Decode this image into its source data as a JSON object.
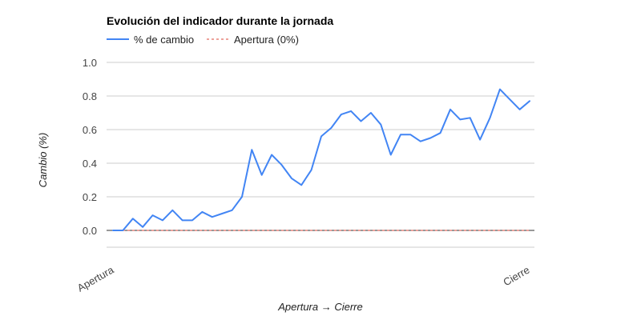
{
  "chart_data": {
    "type": "line",
    "title": "Evolución del indicador durante la jornada",
    "xlabel": "Apertura → Cierre",
    "ylabel": "Cambio (%)",
    "ylim": [
      0,
      1.0
    ],
    "yticks": [
      "0.0",
      "0.2",
      "0.4",
      "0.6",
      "0.8",
      "1.0"
    ],
    "xtick_labels": [
      "Apertura",
      "Cierre"
    ],
    "grid": true,
    "legend_position": "top-left",
    "colors": {
      "series": "#4285F4",
      "reference": "#DB4437"
    },
    "series": [
      {
        "name": "% de cambio",
        "values": [
          0.0,
          0.0,
          0.07,
          0.02,
          0.09,
          0.06,
          0.12,
          0.06,
          0.06,
          0.11,
          0.08,
          0.1,
          0.12,
          0.2,
          0.48,
          0.33,
          0.45,
          0.39,
          0.31,
          0.27,
          0.36,
          0.56,
          0.61,
          0.69,
          0.71,
          0.65,
          0.7,
          0.63,
          0.45,
          0.57,
          0.57,
          0.53,
          0.55,
          0.58,
          0.72,
          0.66,
          0.67,
          0.54,
          0.67,
          0.84,
          0.78,
          0.72,
          0.77
        ]
      },
      {
        "name": "Apertura (0%)",
        "values": [
          0.0,
          0.0
        ],
        "style": "dashed"
      }
    ]
  }
}
